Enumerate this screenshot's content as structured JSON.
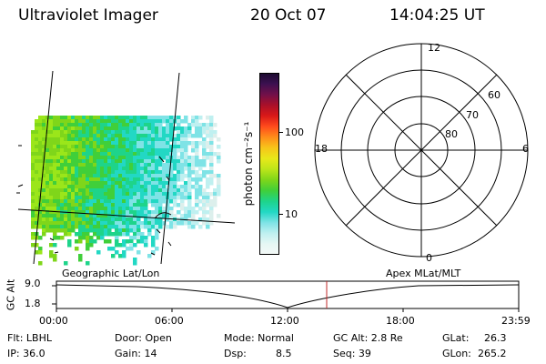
{
  "header": {
    "instrument": "Ultraviolet Imager",
    "date": "20 Oct 07",
    "time": "14:04:25 UT"
  },
  "colorbar": {
    "label": "photon cm⁻²s⁻¹",
    "scale": "log",
    "tick_labels": [
      "100",
      "10"
    ],
    "colors": [
      "#1a0a2e",
      "#3b1050",
      "#70104a",
      "#a8102a",
      "#d81818",
      "#ff4a1c",
      "#ff8c1a",
      "#f7c51a",
      "#e8e81a",
      "#bde51a",
      "#7fd61a",
      "#40cf3a",
      "#1ed48a",
      "#22d8c4",
      "#7fe3e6",
      "#bff0f0",
      "#e6f7f4",
      "#f4f9f7"
    ]
  },
  "polar_plot": {
    "mlt_labels": {
      "top": "12",
      "bottom": "0",
      "left": "18",
      "right": "6"
    },
    "lat_labels": [
      "60",
      "70",
      "80"
    ]
  },
  "image_panel": {
    "colors": [
      "#9be61a",
      "#7fd61a",
      "#40cf3a",
      "#1ed48a",
      "#22d8c4",
      "#7fe3e6",
      "#bff0f0",
      "#dcefec"
    ]
  },
  "orbit": {
    "left_label": "Geographic Lat/Lon",
    "right_label": "Apex MLat/MLT",
    "axis_title": "GC Alt",
    "y_ticks": [
      "9.0",
      "1.8"
    ],
    "x_ticks": [
      "00:00",
      "06:00",
      "12:00",
      "18:00",
      "23:59"
    ],
    "current_marker_color": "#c0282a"
  },
  "status": {
    "flt": "Flt: LBHL",
    "ip": "IP: 36.0",
    "door": "Door: Open",
    "gain": "Gain: 14",
    "mode": "Mode: Normal",
    "dsp_label": "Dsp:",
    "dsp_value": "8.5",
    "gc_alt": "GC Alt: 2.8 Re",
    "seq": "Seq: 39",
    "glat_label": "GLat:",
    "glat_value": "26.3",
    "glon_label": "GLon:",
    "glon_value": "265.2"
  }
}
